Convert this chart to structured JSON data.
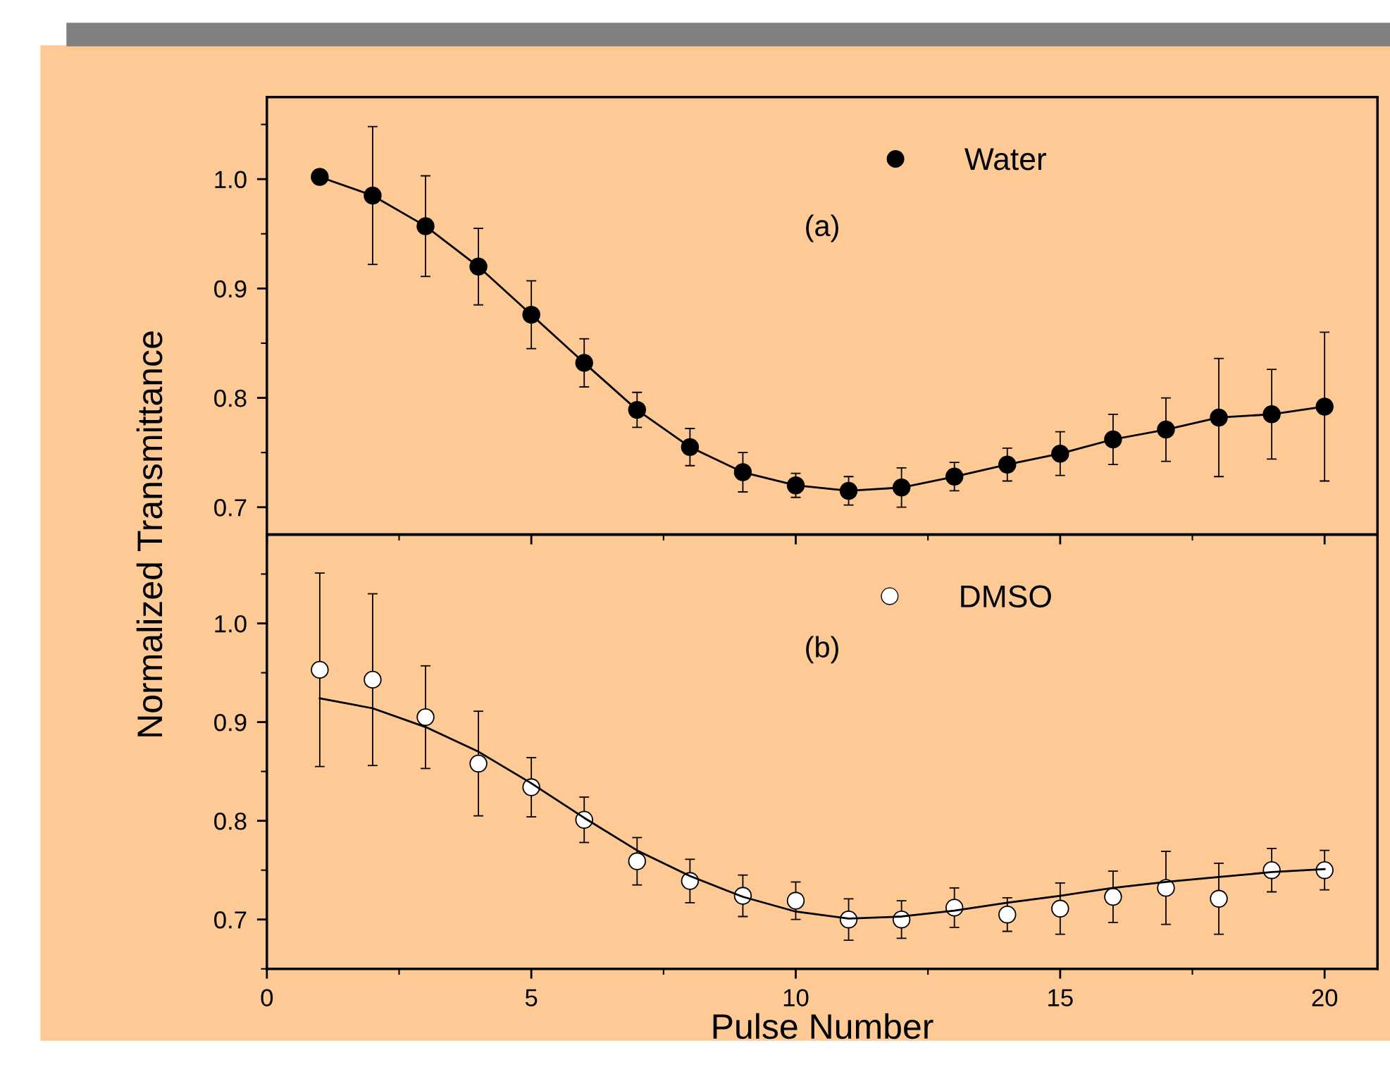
{
  "chart_data": [
    {
      "type": "scatter",
      "ylabel": "Normalized Transmittance",
      "x": [
        1,
        2,
        3,
        4,
        5,
        6,
        7,
        8,
        9,
        10,
        11,
        12,
        13,
        14,
        15,
        16,
        17,
        18,
        19,
        20
      ],
      "xlim": [
        0,
        21
      ],
      "xticks": [
        0,
        5,
        10,
        15,
        20
      ],
      "ylim": [
        0.675,
        1.075
      ],
      "yticks": [
        {
          "value": 0.7,
          "label": "0.7"
        },
        {
          "value": 0.8,
          "label": "0.8"
        },
        {
          "value": 0.9,
          "label": "0.9"
        },
        {
          "value": 1.0,
          "label": "1.0"
        }
      ],
      "tick_labels": "y",
      "legend": "top",
      "grid": false,
      "annotations": [
        "(a)"
      ],
      "series": [
        {
          "name": "Water",
          "color": "#000000",
          "marker": "circle",
          "values": [
            1.002,
            0.985,
            0.957,
            0.92,
            0.876,
            0.832,
            0.789,
            0.755,
            0.732,
            0.72,
            0.715,
            0.718,
            0.728,
            0.739,
            0.749,
            0.762,
            0.771,
            0.782,
            0.785,
            0.792
          ],
          "errors": [
            0.004,
            0.063,
            0.046,
            0.035,
            0.031,
            0.022,
            0.016,
            0.017,
            0.018,
            0.011,
            0.013,
            0.018,
            0.013,
            0.015,
            0.02,
            0.023,
            0.029,
            0.054,
            0.041,
            0.068
          ]
        },
        {
          "type": "line",
          "color": "#000000",
          "line_style": "solid",
          "values": [
            1.002,
            0.985,
            0.957,
            0.92,
            0.876,
            0.832,
            0.789,
            0.755,
            0.732,
            0.72,
            0.715,
            0.718,
            0.728,
            0.739,
            0.749,
            0.762,
            0.771,
            0.782,
            0.785,
            0.792
          ]
        }
      ]
    },
    {
      "type": "scatter",
      "xlabel": "Pulse Number",
      "x": [
        1,
        2,
        3,
        4,
        5,
        6,
        7,
        8,
        9,
        10,
        11,
        12,
        13,
        14,
        15,
        16,
        17,
        18,
        19,
        20
      ],
      "xlim": [
        0,
        21
      ],
      "xticks": [
        0,
        5,
        10,
        15,
        20
      ],
      "ylim": [
        0.65,
        1.09
      ],
      "yticks": [
        {
          "value": 0.7,
          "label": "0.7"
        },
        {
          "value": 0.8,
          "label": "0.8"
        },
        {
          "value": 0.9,
          "label": "0.9"
        },
        {
          "value": 1.0,
          "label": "1.0"
        }
      ],
      "legend": "top",
      "grid": false,
      "annotations": [
        "(b)"
      ],
      "series": [
        {
          "name": "DMSO",
          "color": "#ffffff",
          "marker": "circle",
          "values": [
            0.953,
            0.943,
            0.905,
            0.858,
            0.834,
            0.801,
            0.759,
            0.739,
            0.724,
            0.719,
            0.7,
            0.7,
            0.712,
            0.705,
            0.711,
            0.723,
            0.732,
            0.721,
            0.75,
            0.75
          ],
          "errors": [
            0.098,
            0.087,
            0.052,
            0.053,
            0.03,
            0.023,
            0.024,
            0.022,
            0.021,
            0.019,
            0.021,
            0.019,
            0.02,
            0.017,
            0.026,
            0.026,
            0.037,
            0.036,
            0.022,
            0.02
          ]
        },
        {
          "type": "line",
          "color": "#000000",
          "line_style": "solid",
          "values": [
            0.924,
            0.914,
            0.895,
            0.87,
            0.838,
            0.803,
            0.77,
            0.744,
            0.723,
            0.708,
            0.701,
            0.703,
            0.709,
            0.717,
            0.724,
            0.732,
            0.738,
            0.743,
            0.748,
            0.751
          ]
        }
      ]
    }
  ]
}
